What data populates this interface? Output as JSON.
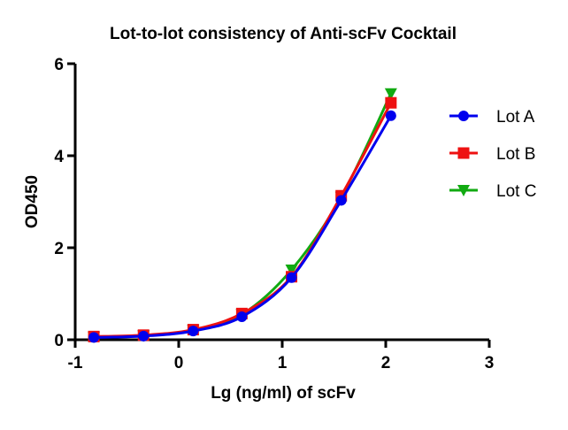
{
  "chart_data": {
    "type": "line",
    "title": "Lot-to-lot consistency of Anti-scFv Cocktail",
    "xlabel": "Lg (ng/ml) of scFv",
    "ylabel": "OD450",
    "xlim": [
      -1,
      3
    ],
    "ylim": [
      0,
      6
    ],
    "xticks": [
      "-1",
      "0",
      "1",
      "2",
      "3"
    ],
    "yticks": [
      "0",
      "2",
      "4",
      "6"
    ],
    "grid": false,
    "legend_position": "right",
    "x": [
      -0.82,
      -0.34,
      0.14,
      0.61,
      1.09,
      1.57,
      2.05
    ],
    "series": [
      {
        "name": "Lot A",
        "color": "#0000ee",
        "marker": "circle",
        "values": [
          0.05,
          0.08,
          0.19,
          0.5,
          1.35,
          3.03,
          4.87
        ]
      },
      {
        "name": "Lot B",
        "color": "#ee1111",
        "marker": "square",
        "values": [
          0.07,
          0.1,
          0.22,
          0.57,
          1.37,
          3.13,
          5.15
        ]
      },
      {
        "name": "Lot C",
        "color": "#11aa11",
        "marker": "triangle-down",
        "values": [
          0.06,
          0.09,
          0.21,
          0.55,
          1.52,
          3.1,
          5.35
        ]
      }
    ]
  }
}
